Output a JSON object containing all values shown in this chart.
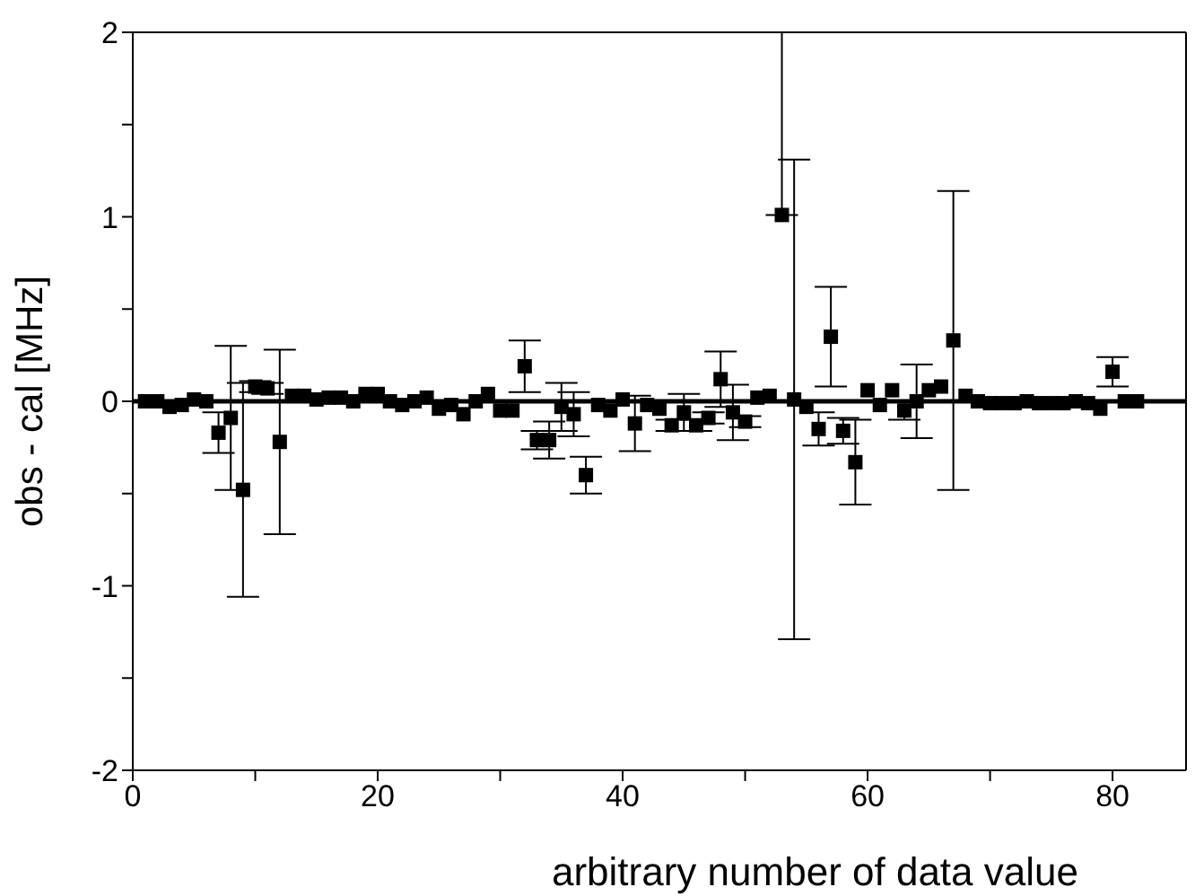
{
  "chart_data": {
    "type": "scatter",
    "xlabel": "arbitrary number of data value",
    "ylabel": "obs - cal [MHz]",
    "x": [
      1,
      2,
      3,
      4,
      5,
      6,
      7,
      8,
      9,
      10,
      11,
      12,
      13,
      14,
      15,
      16,
      17,
      18,
      19,
      20,
      21,
      22,
      23,
      24,
      25,
      26,
      27,
      28,
      29,
      30,
      31,
      32,
      33,
      34,
      35,
      36,
      37,
      38,
      39,
      40,
      41,
      42,
      43,
      44,
      45,
      46,
      47,
      48,
      49,
      50,
      51,
      52,
      53,
      54,
      55,
      56,
      57,
      58,
      59,
      60,
      61,
      62,
      63,
      64,
      65,
      66,
      67,
      68,
      69,
      70,
      71,
      72,
      73,
      74,
      75,
      76,
      77,
      78,
      79,
      80,
      81,
      82
    ],
    "series": [
      {
        "color": "#000000",
        "values": [
          0.0,
          0.0,
          -0.03,
          -0.02,
          0.01,
          0.0,
          -0.17,
          -0.09,
          -0.48,
          0.08,
          0.07,
          -0.22,
          0.03,
          0.03,
          0.01,
          0.02,
          0.02,
          0.0,
          0.04,
          0.04,
          0.0,
          -0.02,
          0.0,
          0.02,
          -0.04,
          -0.02,
          -0.07,
          0.0,
          0.04,
          -0.05,
          -0.05,
          0.19,
          -0.21,
          -0.21,
          -0.03,
          -0.07,
          -0.4,
          -0.02,
          -0.05,
          0.01,
          -0.12,
          -0.02,
          -0.04,
          -0.13,
          -0.06,
          -0.13,
          -0.09,
          0.12,
          -0.06,
          -0.11,
          0.02,
          0.03,
          1.01,
          0.01,
          -0.03,
          -0.15,
          0.35,
          -0.16,
          -0.33,
          0.06,
          -0.02,
          0.06,
          -0.05,
          0.0,
          0.06,
          0.08,
          0.33,
          0.03,
          0.0,
          -0.01,
          -0.01,
          -0.01,
          0.0,
          -0.01,
          -0.01,
          -0.01,
          0.0,
          -0.01,
          -0.04,
          0.16,
          0.0,
          0.0
        ],
        "errors": [
          null,
          null,
          null,
          null,
          null,
          null,
          0.11,
          0.39,
          0.58,
          0.03,
          0.03,
          0.5,
          null,
          null,
          null,
          null,
          null,
          null,
          null,
          null,
          null,
          null,
          null,
          null,
          null,
          null,
          null,
          null,
          null,
          null,
          null,
          0.14,
          0.05,
          0.1,
          0.13,
          0.12,
          0.1,
          null,
          null,
          null,
          0.15,
          null,
          null,
          0.03,
          0.1,
          0.03,
          0.03,
          0.15,
          0.15,
          0.03,
          null,
          null,
          [
            1.01,
            2
          ],
          1.3,
          null,
          0.09,
          0.27,
          0.07,
          0.23,
          null,
          null,
          null,
          0.05,
          0.2,
          null,
          null,
          0.81,
          null,
          null,
          null,
          null,
          null,
          null,
          null,
          null,
          null,
          null,
          null,
          null,
          0.08,
          null,
          null
        ]
      }
    ],
    "xlim": [
      0,
      86
    ],
    "xticks": [
      0,
      {
        "value": 10,
        "label": null
      },
      20,
      {
        "value": 30,
        "label": null
      },
      40,
      {
        "value": 50,
        "label": null
      },
      60,
      {
        "value": 70,
        "label": null
      },
      80
    ],
    "ylim": [
      -2,
      2
    ],
    "yticks": [
      -2,
      {
        "value": -1.5,
        "label": null
      },
      -1,
      {
        "value": -0.5,
        "label": null
      },
      0,
      {
        "value": 0.5,
        "label": null
      },
      1,
      {
        "value": 1.5,
        "label": null
      },
      2
    ],
    "ref_lines": [
      {
        "axis": "y",
        "value": 0,
        "color": "#000000"
      }
    ],
    "marker": "square"
  }
}
